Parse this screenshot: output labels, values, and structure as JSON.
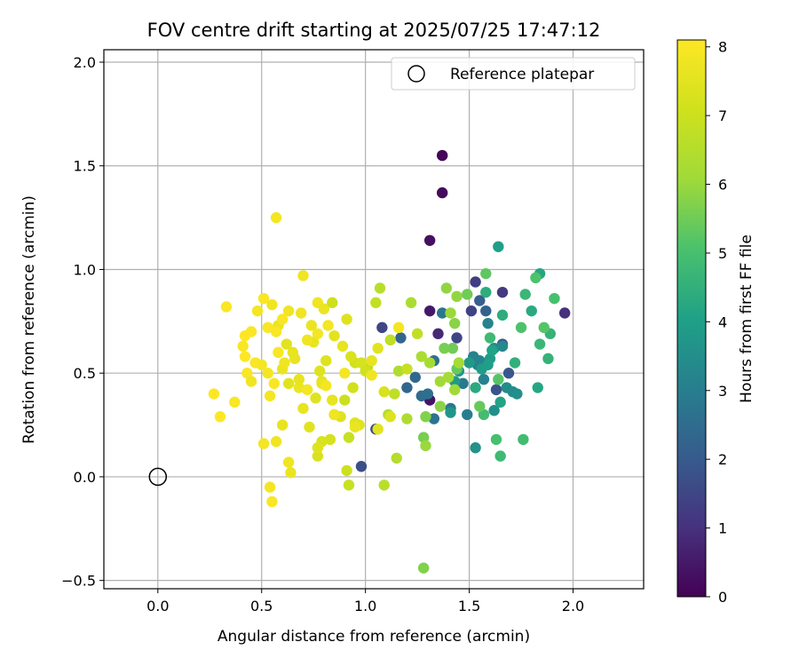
{
  "chart_data": {
    "type": "scatter",
    "title": "FOV centre drift starting at 2025/07/25 17:47:12",
    "xlabel": "Angular distance from reference (arcmin)",
    "ylabel": "Rotation from reference (arcmin)",
    "xlim": [
      -0.26,
      2.34
    ],
    "ylim": [
      -0.54,
      2.06
    ],
    "xticks": [
      0.0,
      0.5,
      1.0,
      1.5,
      2.0
    ],
    "xtick_labels": [
      "0.0",
      "0.5",
      "1.0",
      "1.5",
      "2.0"
    ],
    "yticks": [
      -0.5,
      0.0,
      0.5,
      1.0,
      1.5,
      2.0
    ],
    "ytick_labels": [
      "−0.5",
      "0.0",
      "0.5",
      "1.0",
      "1.5",
      "2.0"
    ],
    "grid": true,
    "legend": {
      "placement": "upper right",
      "label": "Reference platepar"
    },
    "reference_point": {
      "x": 0.0,
      "y": 0.0
    },
    "colorbar": {
      "label": "Hours from first FF file",
      "min": 0,
      "max": 8.1,
      "colormap": "viridis",
      "ticks": [
        0,
        1,
        2,
        3,
        4,
        5,
        6,
        7,
        8
      ]
    },
    "points": [
      {
        "x": 1.37,
        "y": 1.55,
        "c": 0.1
      },
      {
        "x": 1.37,
        "y": 1.37,
        "c": 0.2
      },
      {
        "x": 1.31,
        "y": 1.14,
        "c": 0.3
      },
      {
        "x": 1.31,
        "y": 0.8,
        "c": 0.5
      },
      {
        "x": 1.35,
        "y": 0.69,
        "c": 0.8
      },
      {
        "x": 1.31,
        "y": 0.37,
        "c": 0.4
      },
      {
        "x": 1.96,
        "y": 0.79,
        "c": 1.0
      },
      {
        "x": 1.66,
        "y": 0.89,
        "c": 1.2
      },
      {
        "x": 1.53,
        "y": 0.94,
        "c": 1.3
      },
      {
        "x": 1.51,
        "y": 0.8,
        "c": 1.4
      },
      {
        "x": 1.44,
        "y": 0.67,
        "c": 1.5
      },
      {
        "x": 1.08,
        "y": 0.72,
        "c": 1.5
      },
      {
        "x": 1.05,
        "y": 0.23,
        "c": 1.6
      },
      {
        "x": 0.98,
        "y": 0.05,
        "c": 1.7
      },
      {
        "x": 1.63,
        "y": 0.42,
        "c": 1.8
      },
      {
        "x": 1.69,
        "y": 0.5,
        "c": 1.9
      },
      {
        "x": 1.66,
        "y": 0.64,
        "c": 2.0
      },
      {
        "x": 1.55,
        "y": 0.85,
        "c": 2.1
      },
      {
        "x": 1.58,
        "y": 0.8,
        "c": 2.2
      },
      {
        "x": 1.2,
        "y": 0.43,
        "c": 2.3
      },
      {
        "x": 1.17,
        "y": 0.67,
        "c": 2.3
      },
      {
        "x": 1.24,
        "y": 0.48,
        "c": 2.4
      },
      {
        "x": 1.27,
        "y": 0.39,
        "c": 2.5
      },
      {
        "x": 1.3,
        "y": 0.4,
        "c": 2.6
      },
      {
        "x": 1.33,
        "y": 0.56,
        "c": 2.6
      },
      {
        "x": 1.33,
        "y": 0.28,
        "c": 2.7
      },
      {
        "x": 1.37,
        "y": 0.79,
        "c": 2.8
      },
      {
        "x": 1.41,
        "y": 0.33,
        "c": 2.8
      },
      {
        "x": 1.47,
        "y": 0.45,
        "c": 2.9
      },
      {
        "x": 1.49,
        "y": 0.3,
        "c": 3.0
      },
      {
        "x": 1.54,
        "y": 0.54,
        "c": 3.0
      },
      {
        "x": 1.52,
        "y": 0.58,
        "c": 3.1
      },
      {
        "x": 1.57,
        "y": 0.47,
        "c": 3.1
      },
      {
        "x": 1.55,
        "y": 0.56,
        "c": 3.2
      },
      {
        "x": 1.59,
        "y": 0.74,
        "c": 3.2
      },
      {
        "x": 1.62,
        "y": 0.62,
        "c": 3.3
      },
      {
        "x": 1.66,
        "y": 0.63,
        "c": 3.3
      },
      {
        "x": 1.68,
        "y": 0.43,
        "c": 3.4
      },
      {
        "x": 1.71,
        "y": 0.41,
        "c": 3.4
      },
      {
        "x": 1.73,
        "y": 0.4,
        "c": 3.5
      },
      {
        "x": 1.62,
        "y": 0.32,
        "c": 3.5
      },
      {
        "x": 1.53,
        "y": 0.14,
        "c": 3.6
      },
      {
        "x": 1.41,
        "y": 0.31,
        "c": 3.7
      },
      {
        "x": 1.45,
        "y": 0.51,
        "c": 3.7
      },
      {
        "x": 1.43,
        "y": 0.46,
        "c": 3.8
      },
      {
        "x": 1.5,
        "y": 0.55,
        "c": 3.8
      },
      {
        "x": 1.56,
        "y": 0.52,
        "c": 3.9
      },
      {
        "x": 1.6,
        "y": 0.57,
        "c": 3.9
      },
      {
        "x": 1.64,
        "y": 1.11,
        "c": 4.0
      },
      {
        "x": 1.59,
        "y": 0.54,
        "c": 4.0
      },
      {
        "x": 1.61,
        "y": 0.61,
        "c": 4.1
      },
      {
        "x": 1.65,
        "y": 0.36,
        "c": 4.1
      },
      {
        "x": 1.83,
        "y": 0.43,
        "c": 4.2
      },
      {
        "x": 1.84,
        "y": 0.98,
        "c": 4.2
      },
      {
        "x": 1.8,
        "y": 0.8,
        "c": 4.3
      },
      {
        "x": 1.53,
        "y": 0.43,
        "c": 4.3
      },
      {
        "x": 1.58,
        "y": 0.89,
        "c": 4.4
      },
      {
        "x": 1.66,
        "y": 0.78,
        "c": 4.4
      },
      {
        "x": 1.72,
        "y": 0.55,
        "c": 4.5
      },
      {
        "x": 1.89,
        "y": 0.69,
        "c": 4.6
      },
      {
        "x": 1.88,
        "y": 0.57,
        "c": 4.6
      },
      {
        "x": 1.84,
        "y": 0.64,
        "c": 4.7
      },
      {
        "x": 1.77,
        "y": 0.88,
        "c": 4.7
      },
      {
        "x": 1.6,
        "y": 0.67,
        "c": 4.8
      },
      {
        "x": 1.65,
        "y": 0.1,
        "c": 4.8
      },
      {
        "x": 1.76,
        "y": 0.18,
        "c": 4.9
      },
      {
        "x": 1.57,
        "y": 0.3,
        "c": 4.9
      },
      {
        "x": 1.63,
        "y": 0.18,
        "c": 5.0
      },
      {
        "x": 1.91,
        "y": 0.86,
        "c": 5.0
      },
      {
        "x": 1.82,
        "y": 0.96,
        "c": 5.1
      },
      {
        "x": 1.75,
        "y": 0.72,
        "c": 5.1
      },
      {
        "x": 1.86,
        "y": 0.72,
        "c": 5.2
      },
      {
        "x": 1.64,
        "y": 0.47,
        "c": 5.2
      },
      {
        "x": 1.58,
        "y": 0.98,
        "c": 5.3
      },
      {
        "x": 1.55,
        "y": 0.34,
        "c": 5.4
      },
      {
        "x": 1.44,
        "y": 0.52,
        "c": 5.4
      },
      {
        "x": 1.49,
        "y": 0.88,
        "c": 5.5
      },
      {
        "x": 1.42,
        "y": 0.62,
        "c": 5.5
      },
      {
        "x": 1.38,
        "y": 0.62,
        "c": 5.6
      },
      {
        "x": 1.28,
        "y": 0.19,
        "c": 5.6
      },
      {
        "x": 1.28,
        "y": -0.44,
        "c": 5.7
      },
      {
        "x": 1.29,
        "y": 0.29,
        "c": 5.7
      },
      {
        "x": 1.36,
        "y": 0.34,
        "c": 5.8
      },
      {
        "x": 1.43,
        "y": 0.74,
        "c": 5.8
      },
      {
        "x": 1.44,
        "y": 0.87,
        "c": 5.9
      },
      {
        "x": 1.39,
        "y": 0.91,
        "c": 5.9
      },
      {
        "x": 1.41,
        "y": 0.79,
        "c": 6.0
      },
      {
        "x": 1.29,
        "y": 0.15,
        "c": 6.0
      },
      {
        "x": 1.36,
        "y": 0.46,
        "c": 6.1
      },
      {
        "x": 1.43,
        "y": 0.42,
        "c": 6.1
      },
      {
        "x": 1.45,
        "y": 0.55,
        "c": 6.2
      },
      {
        "x": 1.4,
        "y": 0.48,
        "c": 6.2
      },
      {
        "x": 1.27,
        "y": 0.58,
        "c": 6.3
      },
      {
        "x": 1.22,
        "y": 0.84,
        "c": 6.3
      },
      {
        "x": 1.16,
        "y": 0.51,
        "c": 6.4
      },
      {
        "x": 1.2,
        "y": 0.28,
        "c": 6.4
      },
      {
        "x": 1.11,
        "y": 0.3,
        "c": 6.5
      },
      {
        "x": 1.15,
        "y": 0.09,
        "c": 6.5
      },
      {
        "x": 1.09,
        "y": -0.04,
        "c": 6.6
      },
      {
        "x": 1.07,
        "y": 0.91,
        "c": 6.6
      },
      {
        "x": 1.12,
        "y": 0.66,
        "c": 6.7
      },
      {
        "x": 1.14,
        "y": 0.4,
        "c": 6.7
      },
      {
        "x": 1.05,
        "y": 0.84,
        "c": 6.8
      },
      {
        "x": 1.01,
        "y": 0.53,
        "c": 6.8
      },
      {
        "x": 0.92,
        "y": -0.04,
        "c": 6.9
      },
      {
        "x": 0.92,
        "y": 0.19,
        "c": 6.9
      },
      {
        "x": 0.91,
        "y": 0.03,
        "c": 7.0
      },
      {
        "x": 0.9,
        "y": 0.37,
        "c": 7.0
      },
      {
        "x": 0.95,
        "y": 0.55,
        "c": 7.1
      },
      {
        "x": 0.94,
        "y": 0.43,
        "c": 7.1
      },
      {
        "x": 0.85,
        "y": 0.3,
        "c": 7.2
      },
      {
        "x": 0.83,
        "y": 0.18,
        "c": 7.2
      },
      {
        "x": 0.79,
        "y": 0.17,
        "c": 7.3
      },
      {
        "x": 0.77,
        "y": 0.1,
        "c": 7.3
      },
      {
        "x": 0.77,
        "y": 0.14,
        "c": 7.4
      },
      {
        "x": 0.81,
        "y": 0.56,
        "c": 7.4
      },
      {
        "x": 0.79,
        "y": 0.46,
        "c": 7.5
      },
      {
        "x": 0.73,
        "y": 0.24,
        "c": 7.5
      },
      {
        "x": 0.75,
        "y": 0.65,
        "c": 7.6
      },
      {
        "x": 0.7,
        "y": 0.33,
        "c": 7.6
      },
      {
        "x": 0.68,
        "y": 0.43,
        "c": 7.7
      },
      {
        "x": 0.64,
        "y": 0.02,
        "c": 7.7
      },
      {
        "x": 0.63,
        "y": 0.07,
        "c": 7.8
      },
      {
        "x": 0.57,
        "y": 0.17,
        "c": 7.8
      },
      {
        "x": 0.51,
        "y": 0.16,
        "c": 7.9
      },
      {
        "x": 0.54,
        "y": -0.05,
        "c": 7.9
      },
      {
        "x": 0.55,
        "y": -0.12,
        "c": 8.0
      },
      {
        "x": 0.6,
        "y": 0.25,
        "c": 7.6
      },
      {
        "x": 0.62,
        "y": 0.64,
        "c": 7.5
      },
      {
        "x": 0.58,
        "y": 0.73,
        "c": 7.7
      },
      {
        "x": 0.55,
        "y": 0.83,
        "c": 7.8
      },
      {
        "x": 0.51,
        "y": 0.86,
        "c": 8.0
      },
      {
        "x": 0.48,
        "y": 0.8,
        "c": 7.9
      },
      {
        "x": 0.57,
        "y": 1.25,
        "c": 7.9
      },
      {
        "x": 0.7,
        "y": 0.97,
        "c": 7.8
      },
      {
        "x": 0.77,
        "y": 0.84,
        "c": 7.8
      },
      {
        "x": 0.8,
        "y": 0.81,
        "c": 7.7
      },
      {
        "x": 0.84,
        "y": 0.84,
        "c": 7.0
      },
      {
        "x": 0.91,
        "y": 0.76,
        "c": 7.4
      },
      {
        "x": 0.85,
        "y": 0.68,
        "c": 7.5
      },
      {
        "x": 0.89,
        "y": 0.63,
        "c": 7.6
      },
      {
        "x": 0.93,
        "y": 0.58,
        "c": 7.3
      },
      {
        "x": 0.98,
        "y": 0.55,
        "c": 7.2
      },
      {
        "x": 1.03,
        "y": 0.56,
        "c": 7.6
      },
      {
        "x": 1.0,
        "y": 0.51,
        "c": 7.1
      },
      {
        "x": 1.09,
        "y": 0.41,
        "c": 7.3
      },
      {
        "x": 1.12,
        "y": 0.29,
        "c": 7.4
      },
      {
        "x": 1.06,
        "y": 0.23,
        "c": 7.5
      },
      {
        "x": 0.97,
        "y": 0.25,
        "c": 7.4
      },
      {
        "x": 0.95,
        "y": 0.26,
        "c": 7.5
      },
      {
        "x": 0.88,
        "y": 0.29,
        "c": 7.4
      },
      {
        "x": 0.84,
        "y": 0.37,
        "c": 7.6
      },
      {
        "x": 0.79,
        "y": 0.45,
        "c": 7.6
      },
      {
        "x": 0.78,
        "y": 0.51,
        "c": 7.4
      },
      {
        "x": 0.72,
        "y": 0.66,
        "c": 7.8
      },
      {
        "x": 0.69,
        "y": 0.79,
        "c": 7.8
      },
      {
        "x": 0.63,
        "y": 0.8,
        "c": 7.8
      },
      {
        "x": 0.6,
        "y": 0.76,
        "c": 8.0
      },
      {
        "x": 0.57,
        "y": 0.7,
        "c": 8.0
      },
      {
        "x": 0.53,
        "y": 0.72,
        "c": 8.0
      },
      {
        "x": 0.45,
        "y": 0.7,
        "c": 8.0
      },
      {
        "x": 0.42,
        "y": 0.68,
        "c": 8.1
      },
      {
        "x": 0.42,
        "y": 0.58,
        "c": 8.1
      },
      {
        "x": 0.41,
        "y": 0.63,
        "c": 8.0
      },
      {
        "x": 0.43,
        "y": 0.5,
        "c": 8.0
      },
      {
        "x": 0.45,
        "y": 0.46,
        "c": 7.8
      },
      {
        "x": 0.47,
        "y": 0.55,
        "c": 8.0
      },
      {
        "x": 0.5,
        "y": 0.54,
        "c": 7.9
      },
      {
        "x": 0.53,
        "y": 0.5,
        "c": 7.9
      },
      {
        "x": 0.56,
        "y": 0.45,
        "c": 8.0
      },
      {
        "x": 0.6,
        "y": 0.52,
        "c": 7.7
      },
      {
        "x": 0.65,
        "y": 0.6,
        "c": 7.6
      },
      {
        "x": 0.68,
        "y": 0.47,
        "c": 7.6
      },
      {
        "x": 0.72,
        "y": 0.42,
        "c": 7.9
      },
      {
        "x": 0.76,
        "y": 0.38,
        "c": 7.4
      },
      {
        "x": 0.81,
        "y": 0.44,
        "c": 7.9
      },
      {
        "x": 0.85,
        "y": 0.3,
        "c": 7.8
      },
      {
        "x": 0.9,
        "y": 0.5,
        "c": 7.9
      },
      {
        "x": 0.95,
        "y": 0.24,
        "c": 7.7
      },
      {
        "x": 0.33,
        "y": 0.82,
        "c": 8.0
      },
      {
        "x": 0.27,
        "y": 0.4,
        "c": 8.1
      },
      {
        "x": 0.3,
        "y": 0.29,
        "c": 8.1
      },
      {
        "x": 0.37,
        "y": 0.36,
        "c": 8.0
      },
      {
        "x": 0.54,
        "y": 0.39,
        "c": 7.9
      },
      {
        "x": 0.58,
        "y": 0.6,
        "c": 8.0
      },
      {
        "x": 0.61,
        "y": 0.55,
        "c": 7.8
      },
      {
        "x": 0.63,
        "y": 0.45,
        "c": 7.5
      },
      {
        "x": 0.66,
        "y": 0.57,
        "c": 7.6
      },
      {
        "x": 0.74,
        "y": 0.73,
        "c": 7.7
      },
      {
        "x": 0.77,
        "y": 0.69,
        "c": 7.9
      },
      {
        "x": 0.82,
        "y": 0.73,
        "c": 7.9
      },
      {
        "x": 1.03,
        "y": 0.49,
        "c": 7.8
      },
      {
        "x": 1.06,
        "y": 0.62,
        "c": 7.5
      },
      {
        "x": 1.16,
        "y": 0.72,
        "c": 7.9
      },
      {
        "x": 1.2,
        "y": 0.52,
        "c": 6.9
      },
      {
        "x": 1.25,
        "y": 0.69,
        "c": 6.8
      },
      {
        "x": 1.31,
        "y": 0.55,
        "c": 6.2
      }
    ]
  }
}
